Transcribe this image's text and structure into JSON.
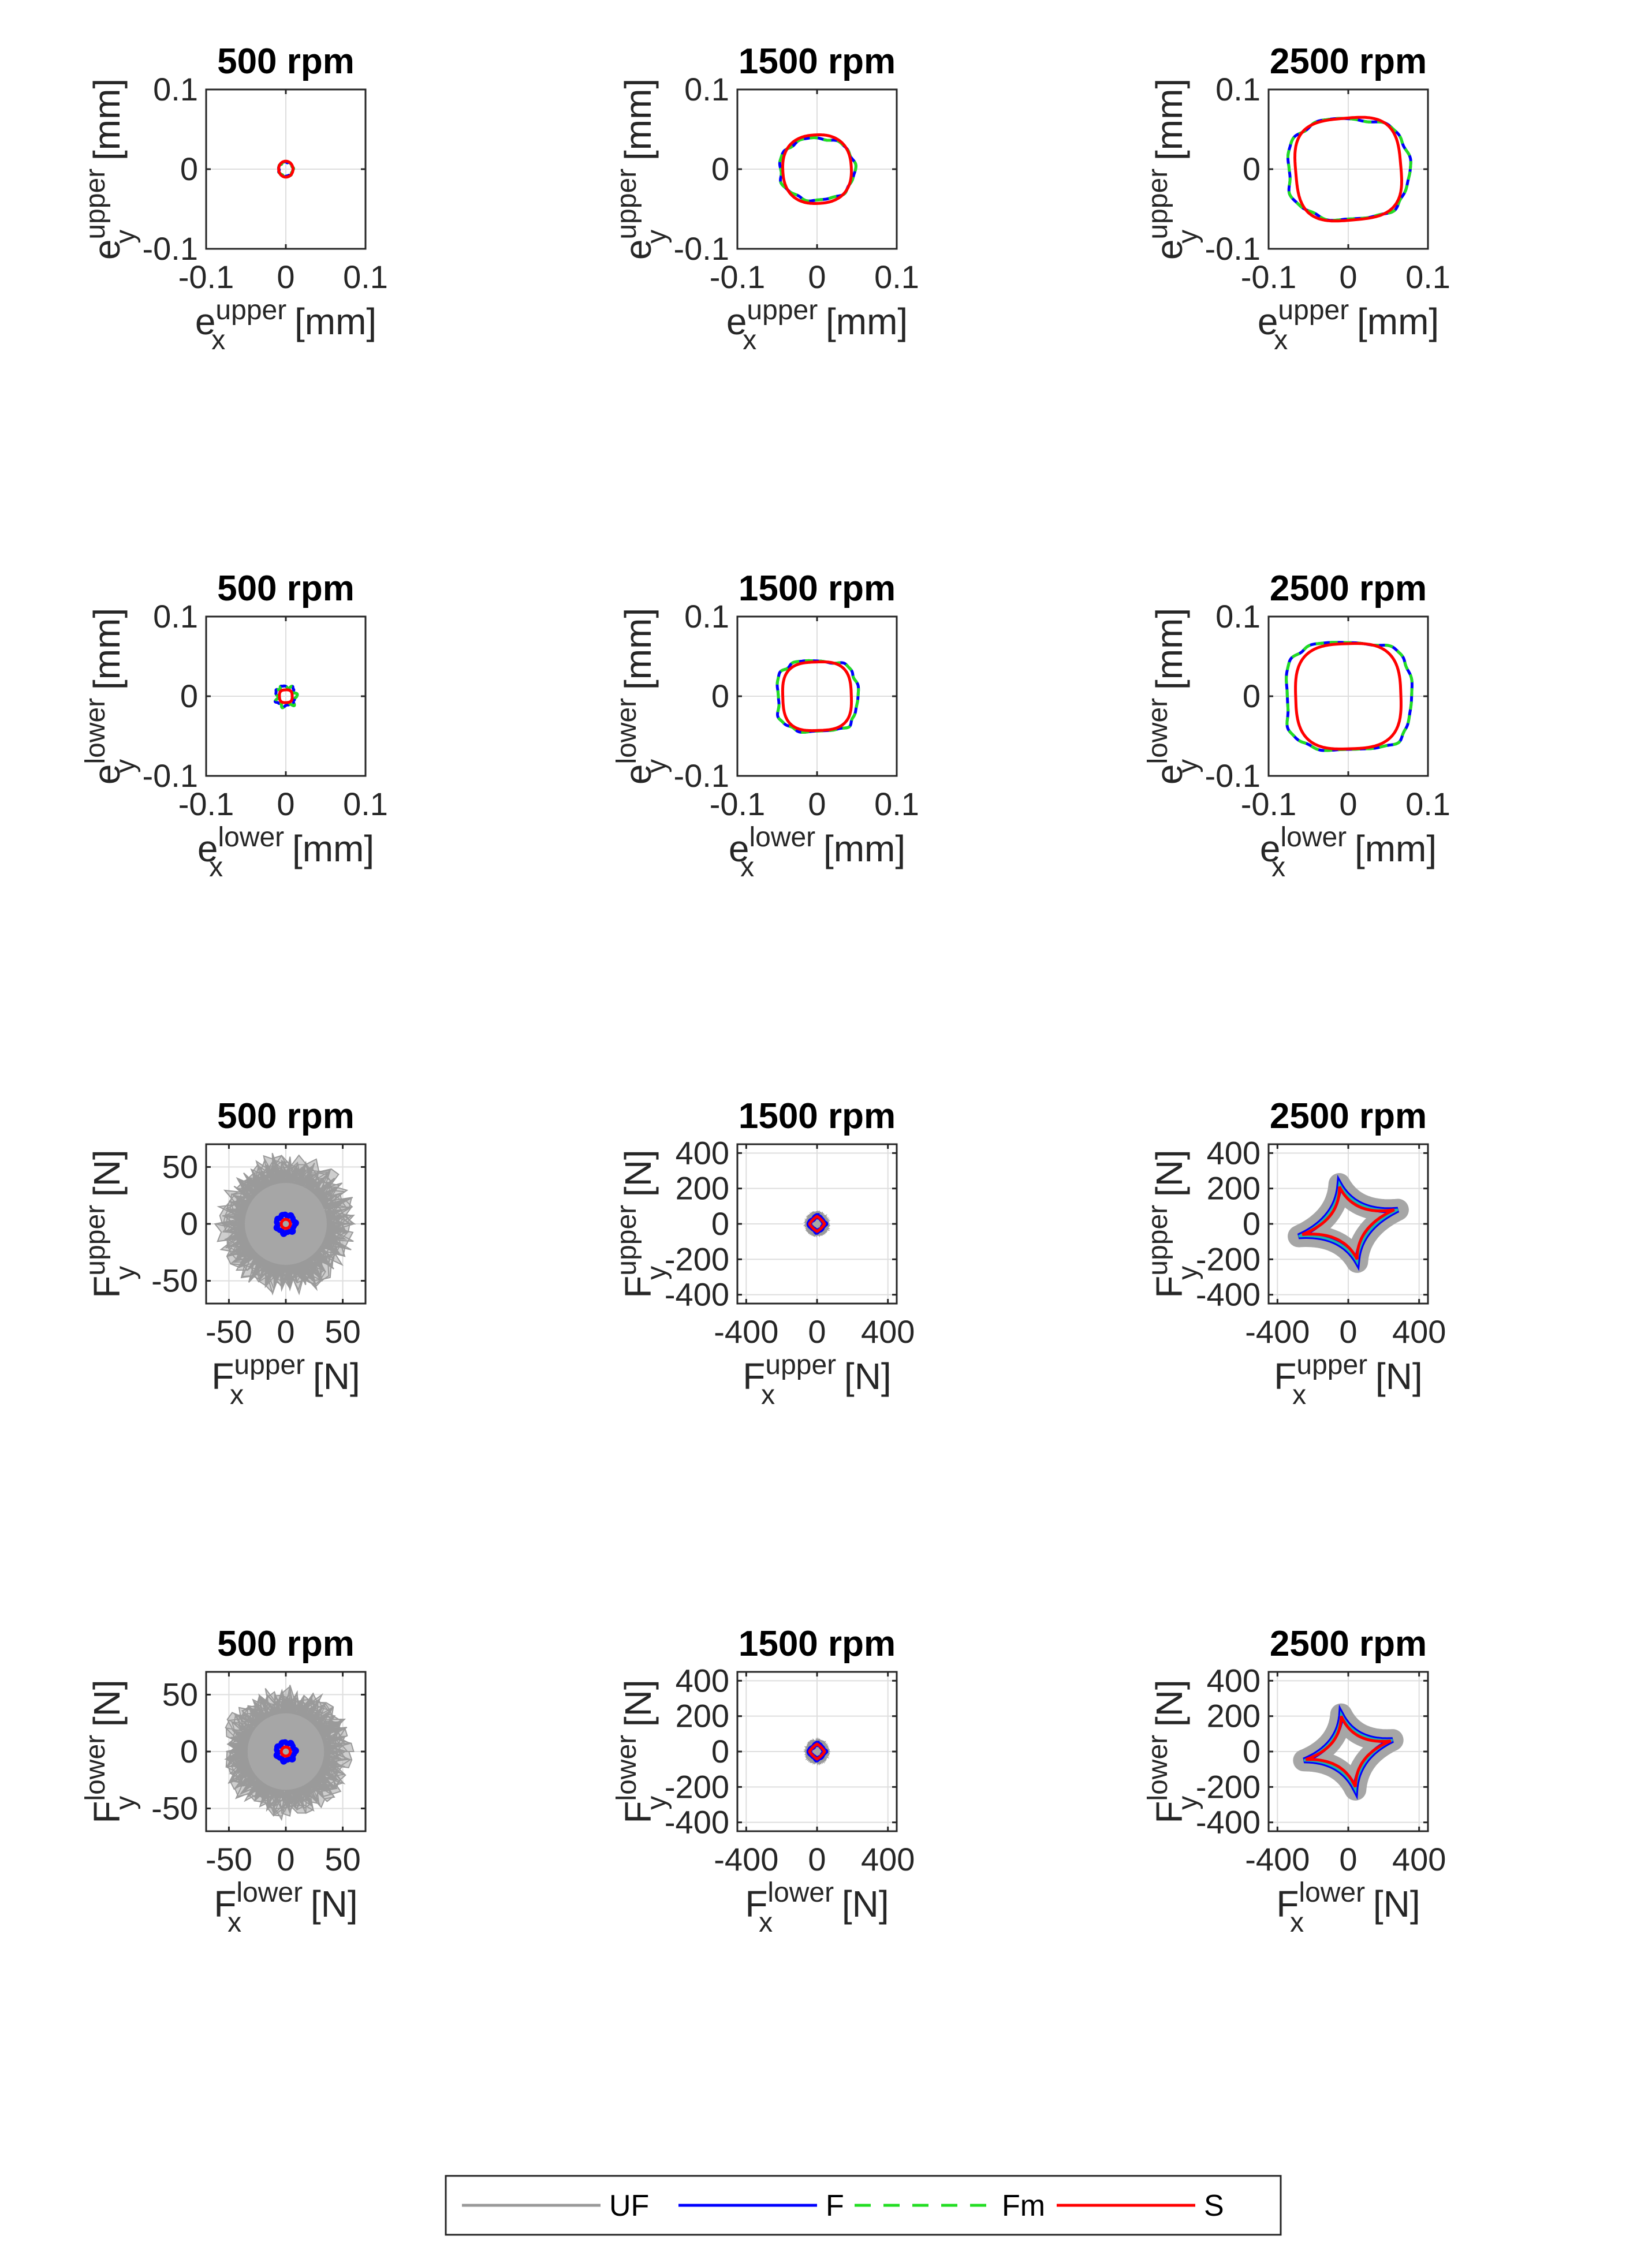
{
  "legend": [
    {
      "name": "UF",
      "color": "#999999",
      "dash": ""
    },
    {
      "name": "F",
      "color": "#0000ff",
      "dash": ""
    },
    {
      "name": "Fm",
      "color": "#22dd22",
      "dash": "28,22"
    },
    {
      "name": "S",
      "color": "#ff0000",
      "dash": ""
    }
  ],
  "chart_data": [
    {
      "type": "line",
      "title": "500 rpm",
      "xlabel": {
        "base": "e",
        "sup": "upper",
        "sub": "x",
        "unit": "[mm]"
      },
      "ylabel": {
        "base": "e",
        "sup": "upper",
        "sub": "y",
        "unit": "[mm]"
      },
      "xlim": [
        -0.1,
        0.1
      ],
      "ylim": [
        -0.1,
        0.1
      ],
      "xticks": [
        -0.1,
        0,
        0.1
      ],
      "yticks": [
        -0.1,
        0,
        0.1
      ],
      "xticklabels": [
        "-0.1",
        "0",
        "0.1"
      ],
      "yticklabels": [
        "-0.1",
        "0",
        "0.1"
      ],
      "grid": "zero",
      "series": {
        "F": {
          "rx": 0.009,
          "ry": 0.009,
          "n": 2.0,
          "wob": 0.06
        },
        "Fm": {
          "rx": 0.009,
          "ry": 0.009,
          "n": 2.0,
          "wob": 0.06
        },
        "S": {
          "rx": 0.009,
          "ry": 0.01,
          "n": 2.0,
          "skew": 0.15
        }
      }
    },
    {
      "type": "line",
      "title": "1500 rpm",
      "xlabel": {
        "base": "e",
        "sup": "upper",
        "sub": "x",
        "unit": "[mm]"
      },
      "ylabel": {
        "base": "e",
        "sup": "upper",
        "sub": "y",
        "unit": "[mm]"
      },
      "xlim": [
        -0.1,
        0.1
      ],
      "ylim": [
        -0.1,
        0.1
      ],
      "xticks": [
        -0.1,
        0,
        0.1
      ],
      "yticks": [
        -0.1,
        0,
        0.1
      ],
      "xticklabels": [
        "-0.1",
        "0",
        "0.1"
      ],
      "yticklabels": [
        "-0.1",
        "0",
        "0.1"
      ],
      "grid": "zero",
      "series": {
        "F": {
          "rx": 0.047,
          "ry": 0.039,
          "n": 2.2,
          "wob": 0.03
        },
        "Fm": {
          "rx": 0.047,
          "ry": 0.039,
          "n": 2.2,
          "wob": 0.03
        },
        "S": {
          "rx": 0.043,
          "ry": 0.043,
          "n": 2.4,
          "skew": 0.15
        }
      }
    },
    {
      "type": "line",
      "title": "2500 rpm",
      "xlabel": {
        "base": "e",
        "sup": "upper",
        "sub": "x",
        "unit": "[mm]"
      },
      "ylabel": {
        "base": "e",
        "sup": "upper",
        "sub": "y",
        "unit": "[mm]"
      },
      "xlim": [
        -0.1,
        0.1
      ],
      "ylim": [
        -0.1,
        0.1
      ],
      "xticks": [
        -0.1,
        0,
        0.1
      ],
      "yticks": [
        -0.1,
        0,
        0.1
      ],
      "xticklabels": [
        "-0.1",
        "0",
        "0.1"
      ],
      "yticklabels": [
        "-0.1",
        "0",
        "0.1"
      ],
      "grid": "zero",
      "series": {
        "F": {
          "rx": 0.076,
          "ry": 0.063,
          "n": 2.6,
          "wob": 0.025
        },
        "Fm": {
          "rx": 0.076,
          "ry": 0.063,
          "n": 2.6,
          "wob": 0.025
        },
        "S": {
          "rx": 0.066,
          "ry": 0.064,
          "n": 3.2,
          "skew": 0.25
        }
      }
    },
    {
      "type": "line",
      "title": "500 rpm",
      "xlabel": {
        "base": "e",
        "sup": "lower",
        "sub": "x",
        "unit": "[mm]"
      },
      "ylabel": {
        "base": "e",
        "sup": "lower",
        "sub": "y",
        "unit": "[mm]"
      },
      "xlim": [
        -0.1,
        0.1
      ],
      "ylim": [
        -0.1,
        0.1
      ],
      "xticks": [
        -0.1,
        0,
        0.1
      ],
      "yticks": [
        -0.1,
        0,
        0.1
      ],
      "xticklabels": [
        "-0.1",
        "0",
        "0.1"
      ],
      "yticklabels": [
        "-0.1",
        "0",
        "0.1"
      ],
      "grid": "zero",
      "series": {
        "F": {
          "rx": 0.012,
          "ry": 0.012,
          "n": 2.5,
          "wob": 0.15
        },
        "Fm": {
          "rx": 0.012,
          "ry": 0.012,
          "n": 2.5,
          "wob": 0.15
        },
        "S": {
          "rx": 0.008,
          "ry": 0.008,
          "n": 3.0,
          "skew": 0.1
        }
      }
    },
    {
      "type": "line",
      "title": "1500 rpm",
      "xlabel": {
        "base": "e",
        "sup": "lower",
        "sub": "x",
        "unit": "[mm]"
      },
      "ylabel": {
        "base": "e",
        "sup": "lower",
        "sub": "y",
        "unit": "[mm]"
      },
      "xlim": [
        -0.1,
        0.1
      ],
      "ylim": [
        -0.1,
        0.1
      ],
      "xticks": [
        -0.1,
        0,
        0.1
      ],
      "yticks": [
        -0.1,
        0,
        0.1
      ],
      "xticklabels": [
        "-0.1",
        "0",
        "0.1"
      ],
      "yticklabels": [
        "-0.1",
        "0",
        "0.1"
      ],
      "grid": "zero",
      "series": {
        "F": {
          "rx": 0.05,
          "ry": 0.044,
          "n": 3.2,
          "wob": 0.03
        },
        "Fm": {
          "rx": 0.05,
          "ry": 0.044,
          "n": 3.2,
          "wob": 0.03
        },
        "S": {
          "rx": 0.043,
          "ry": 0.043,
          "n": 3.0,
          "skew": 0.1
        }
      }
    },
    {
      "type": "line",
      "title": "2500 rpm",
      "xlabel": {
        "base": "e",
        "sup": "lower",
        "sub": "x",
        "unit": "[mm]"
      },
      "ylabel": {
        "base": "e",
        "sup": "lower",
        "sub": "y",
        "unit": "[mm]"
      },
      "xlim": [
        -0.1,
        0.1
      ],
      "ylim": [
        -0.1,
        0.1
      ],
      "xticks": [
        -0.1,
        0,
        0.1
      ],
      "yticks": [
        -0.1,
        0,
        0.1
      ],
      "xticklabels": [
        "-0.1",
        "0",
        "0.1"
      ],
      "yticklabels": [
        "-0.1",
        "0",
        "0.1"
      ],
      "grid": "zero",
      "series": {
        "F": {
          "rx": 0.078,
          "ry": 0.067,
          "n": 3.4,
          "wob": 0.02
        },
        "Fm": {
          "rx": 0.078,
          "ry": 0.067,
          "n": 3.4,
          "wob": 0.02
        },
        "S": {
          "rx": 0.066,
          "ry": 0.066,
          "n": 3.0,
          "skew": 0.1
        }
      }
    },
    {
      "type": "line",
      "title": "500 rpm",
      "xlabel": {
        "base": "F",
        "sup": "upper",
        "sub": "x",
        "unit": "[N]"
      },
      "ylabel": {
        "base": "F",
        "sup": "upper",
        "sub": "y",
        "unit": "[N]"
      },
      "xlim": [
        -70,
        70
      ],
      "ylim": [
        -70,
        70
      ],
      "xticks": [
        -50,
        0,
        50
      ],
      "yticks": [
        -50,
        0,
        50
      ],
      "xticklabels": [
        "-50",
        "0",
        "50"
      ],
      "yticklabels": [
        "-50",
        "0",
        "50"
      ],
      "grid": "full",
      "cloud": {
        "r": 45,
        "spike": 18
      },
      "series": {
        "F": {
          "rx": 8,
          "ry": 8,
          "n": 2.0,
          "wob": 0.12
        },
        "S": {
          "rx": 4,
          "ry": 4,
          "n": 2.0,
          "skew": 0
        }
      }
    },
    {
      "type": "line",
      "title": "1500 rpm",
      "xlabel": {
        "base": "F",
        "sup": "upper",
        "sub": "x",
        "unit": "[N]"
      },
      "ylabel": {
        "base": "F",
        "sup": "upper",
        "sub": "y",
        "unit": "[N]"
      },
      "xlim": [
        -450,
        450
      ],
      "ylim": [
        -450,
        450
      ],
      "xticks": [
        -400,
        0,
        400
      ],
      "yticks": [
        -400,
        -200,
        0,
        200,
        400
      ],
      "xticklabels": [
        "-400",
        "0",
        "400"
      ],
      "yticklabels": [
        "-400",
        "-200",
        "0",
        "200",
        "400"
      ],
      "grid": "full",
      "cloud": {
        "r": 55,
        "spike": 15
      },
      "series": {
        "F": {
          "rx": 45,
          "ry": 45,
          "n": 1.2,
          "wob": 0.05
        },
        "S": {
          "rx": 42,
          "ry": 42,
          "n": 1.2,
          "skew": 0
        }
      }
    },
    {
      "type": "line",
      "title": "2500 rpm",
      "xlabel": {
        "base": "F",
        "sup": "upper",
        "sub": "x",
        "unit": "[N]"
      },
      "ylabel": {
        "base": "F",
        "sup": "upper",
        "sub": "y",
        "unit": "[N]"
      },
      "xlim": [
        -450,
        450
      ],
      "ylim": [
        -450,
        450
      ],
      "xticks": [
        -400,
        0,
        400
      ],
      "yticks": [
        -400,
        -200,
        0,
        200,
        400
      ],
      "xticklabels": [
        "-400",
        "0",
        "400"
      ],
      "yticklabels": [
        "-400",
        "-200",
        "0",
        "200",
        "400"
      ],
      "grid": "full",
      "astroid": {
        "vertices": [
          [
            280,
            80
          ],
          [
            -50,
            225
          ],
          [
            -280,
            -70
          ],
          [
            50,
            -215
          ]
        ],
        "pull": 0.62
      },
      "series": {
        "S": {
          "vertices": [
            [
              260,
              80
            ],
            [
              -50,
              210
            ],
            [
              -260,
              -60
            ],
            [
              50,
              -200
            ]
          ],
          "pull": 0.7
        }
      }
    },
    {
      "type": "line",
      "title": "500 rpm",
      "xlabel": {
        "base": "F",
        "sup": "lower",
        "sub": "x",
        "unit": "[N]"
      },
      "ylabel": {
        "base": "F",
        "sup": "lower",
        "sub": "y",
        "unit": "[N]"
      },
      "xlim": [
        -70,
        70
      ],
      "ylim": [
        -70,
        70
      ],
      "xticks": [
        -50,
        0,
        50
      ],
      "yticks": [
        -50,
        0,
        50
      ],
      "xticklabels": [
        "-50",
        "0",
        "50"
      ],
      "yticklabels": [
        "-50",
        "0",
        "50"
      ],
      "grid": "full",
      "cloud": {
        "r": 42,
        "spike": 16
      },
      "series": {
        "F": {
          "rx": 8,
          "ry": 8,
          "n": 2.0,
          "wob": 0.12
        },
        "S": {
          "rx": 4,
          "ry": 4,
          "n": 2.0,
          "skew": 0
        }
      }
    },
    {
      "type": "line",
      "title": "1500 rpm",
      "xlabel": {
        "base": "F",
        "sup": "lower",
        "sub": "x",
        "unit": "[N]"
      },
      "ylabel": {
        "base": "F",
        "sup": "lower",
        "sub": "y",
        "unit": "[N]"
      },
      "xlim": [
        -450,
        450
      ],
      "ylim": [
        -450,
        450
      ],
      "xticks": [
        -400,
        0,
        400
      ],
      "yticks": [
        -400,
        -200,
        0,
        200,
        400
      ],
      "xticklabels": [
        "-400",
        "0",
        "400"
      ],
      "yticklabels": [
        "-400",
        "-200",
        "0",
        "200",
        "400"
      ],
      "grid": "full",
      "cloud": {
        "r": 55,
        "spike": 15
      },
      "series": {
        "F": {
          "rx": 45,
          "ry": 45,
          "n": 1.2,
          "wob": 0.05
        },
        "S": {
          "rx": 42,
          "ry": 42,
          "n": 1.2,
          "skew": 0
        }
      }
    },
    {
      "type": "line",
      "title": "2500 rpm",
      "xlabel": {
        "base": "F",
        "sup": "lower",
        "sub": "x",
        "unit": "[N]"
      },
      "ylabel": {
        "base": "F",
        "sup": "lower",
        "sub": "y",
        "unit": "[N]"
      },
      "xlim": [
        -450,
        450
      ],
      "ylim": [
        -450,
        450
      ],
      "xticks": [
        -400,
        0,
        400
      ],
      "yticks": [
        -400,
        -200,
        0,
        200,
        400
      ],
      "xticklabels": [
        "-400",
        "0",
        "400"
      ],
      "yticklabels": [
        "-400",
        "-200",
        "0",
        "200",
        "400"
      ],
      "grid": "full",
      "astroid": {
        "vertices": [
          [
            250,
            65
          ],
          [
            -40,
            210
          ],
          [
            -250,
            -50
          ],
          [
            40,
            -215
          ]
        ],
        "pull": 0.62
      },
      "series": {
        "S": {
          "vertices": [
            [
              240,
              60
            ],
            [
              -40,
              200
            ],
            [
              -240,
              -45
            ],
            [
              40,
              -200
            ]
          ],
          "pull": 0.7
        }
      }
    }
  ]
}
